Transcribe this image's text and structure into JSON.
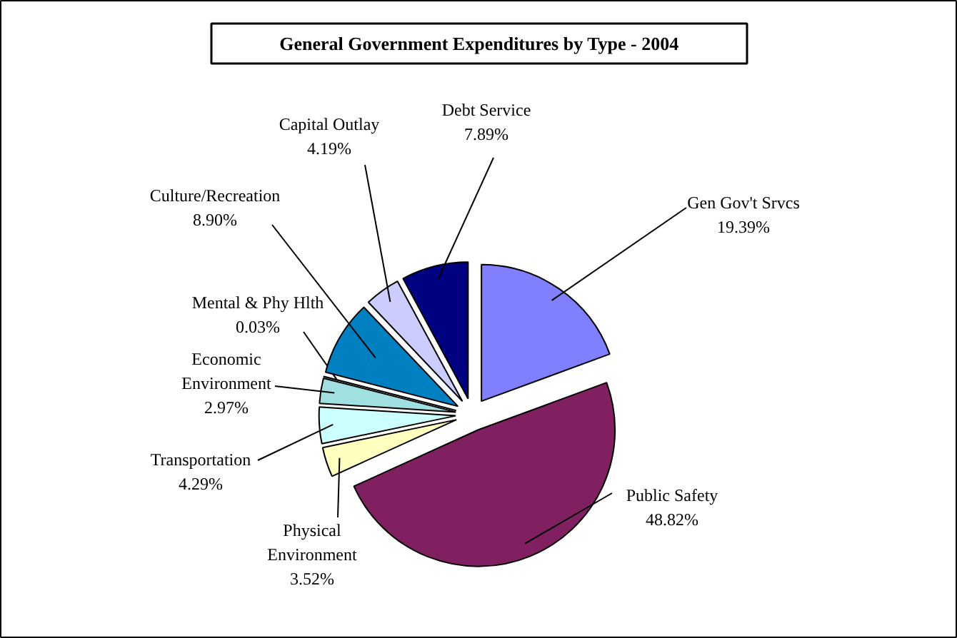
{
  "chart_data": {
    "type": "pie",
    "title": "General Government Expenditures by Type - 2004",
    "categories": [
      "Gen Gov't Srvcs",
      "Public Safety",
      "Physical Environment",
      "Transportation",
      "Economic Environment",
      "Mental & Phy Hlth",
      "Culture/Recreation",
      "Capital Outlay",
      "Debt Service"
    ],
    "values": [
      19.39,
      48.82,
      3.52,
      4.29,
      2.97,
      0.03,
      8.9,
      4.19,
      7.89
    ],
    "colors": [
      "#8080ff",
      "#802060",
      "#ffffc0",
      "#ccffff",
      "#a0e0e0",
      "#600060",
      "#0080c0",
      "#ccccff",
      "#000080"
    ],
    "value_labels": [
      "19.39%",
      "48.82%",
      "3.52%",
      "4.29%",
      "2.97%",
      "0.03%",
      "8.90%",
      "4.19%",
      "7.89%"
    ]
  }
}
